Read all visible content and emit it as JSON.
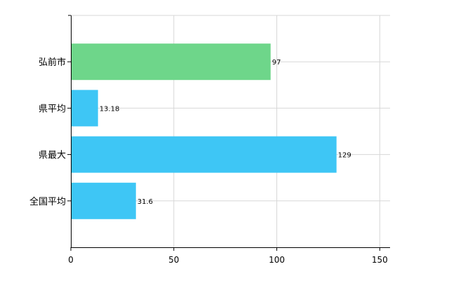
{
  "chart_data": {
    "type": "bar",
    "orientation": "horizontal",
    "categories": [
      "弘前市",
      "県平均",
      "県最大",
      "全国平均"
    ],
    "values": [
      97,
      13.18,
      129,
      31.6
    ],
    "value_labels": [
      "97",
      "13.18",
      "129",
      "31.6"
    ],
    "xlim": [
      0,
      155
    ],
    "x_ticks": [
      0,
      50,
      100,
      150
    ],
    "x_tick_labels": [
      "0",
      "50",
      "100",
      "150"
    ],
    "grid": true,
    "bar_colors": [
      "#6ed68a",
      "#3ec6f5",
      "#3ec6f5",
      "#3ec6f5"
    ],
    "grid_color": "#d7d7d7",
    "axis_color": "#000000"
  }
}
